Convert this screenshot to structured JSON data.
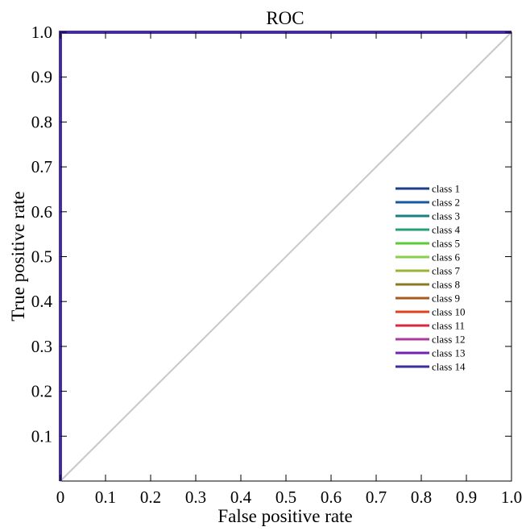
{
  "chart_data": {
    "type": "line",
    "title": "ROC",
    "xlabel": "False positive rate",
    "ylabel": "True positive rate",
    "xlim": [
      0,
      1
    ],
    "ylim": [
      0,
      1
    ],
    "x_ticks": [
      "0",
      "0.1",
      "0.2",
      "0.3",
      "0.4",
      "0.5",
      "0.6",
      "0.7",
      "0.8",
      "0.9",
      "1.0"
    ],
    "y_ticks": [
      "0.1",
      "0.2",
      "0.3",
      "0.4",
      "0.5",
      "0.6",
      "0.7",
      "0.8",
      "0.9",
      "1.0"
    ],
    "grid": false,
    "legend_position": "right",
    "diagonal_reference": {
      "x": [
        0,
        1
      ],
      "y": [
        0,
        1
      ],
      "color": "#c8c8c8"
    },
    "series": [
      {
        "name": "class 1",
        "color": "#1f3d8a",
        "x": [
          0,
          0,
          1
        ],
        "y": [
          0,
          1,
          1
        ]
      },
      {
        "name": "class 2",
        "color": "#1658a8",
        "x": [
          0,
          0,
          1
        ],
        "y": [
          0,
          1,
          1
        ]
      },
      {
        "name": "class 3",
        "color": "#1a7f86",
        "x": [
          0,
          0,
          1
        ],
        "y": [
          0,
          1,
          1
        ]
      },
      {
        "name": "class 4",
        "color": "#24a07a",
        "x": [
          0,
          0,
          1
        ],
        "y": [
          0,
          1,
          1
        ]
      },
      {
        "name": "class 5",
        "color": "#5cc83a",
        "x": [
          0,
          0,
          1
        ],
        "y": [
          0,
          1,
          1
        ]
      },
      {
        "name": "class 6",
        "color": "#86d04a",
        "x": [
          0,
          0,
          1
        ],
        "y": [
          0,
          1,
          1
        ]
      },
      {
        "name": "class 7",
        "color": "#9ab43a",
        "x": [
          0,
          0,
          1
        ],
        "y": [
          0,
          1,
          1
        ]
      },
      {
        "name": "class 8",
        "color": "#8c7a22",
        "x": [
          0,
          0,
          1
        ],
        "y": [
          0,
          1,
          1
        ]
      },
      {
        "name": "class 9",
        "color": "#a65a1c",
        "x": [
          0,
          0,
          1
        ],
        "y": [
          0,
          1,
          1
        ]
      },
      {
        "name": "class 10",
        "color": "#e0401a",
        "x": [
          0,
          0,
          1
        ],
        "y": [
          0,
          1,
          1
        ]
      },
      {
        "name": "class 11",
        "color": "#d42a3a",
        "x": [
          0,
          0,
          1
        ],
        "y": [
          0,
          1,
          1
        ]
      },
      {
        "name": "class 12",
        "color": "#b03a9a",
        "x": [
          0,
          0,
          1
        ],
        "y": [
          0,
          1,
          1
        ]
      },
      {
        "name": "class 13",
        "color": "#7422b0",
        "x": [
          0,
          0,
          1
        ],
        "y": [
          0,
          1,
          1
        ]
      },
      {
        "name": "class 14",
        "color": "#3a2fa0",
        "x": [
          0,
          0,
          1
        ],
        "y": [
          0,
          1,
          1
        ]
      }
    ]
  }
}
